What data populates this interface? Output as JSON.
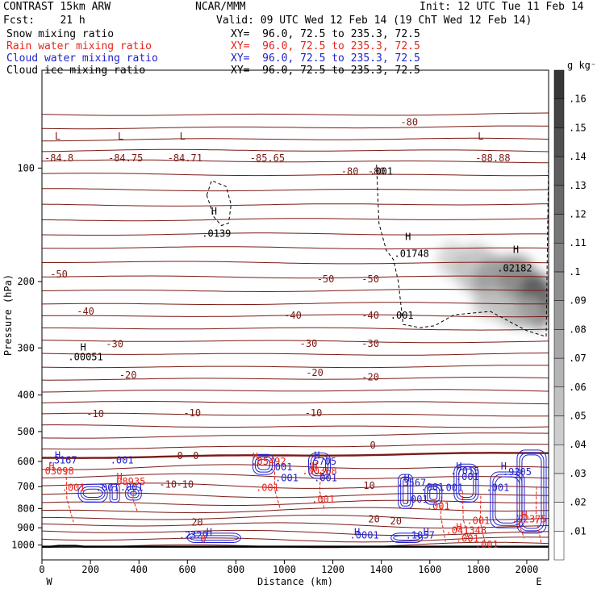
{
  "header": {
    "model": "CONTRAST 15km ARW",
    "forecast": "Fcst:    21 h",
    "center": "NCAR/MMM",
    "init": "Init: 12 UTC Tue 11 Feb 14",
    "valid": "Valid: 09 UTC Wed 12 Feb 14 (19 ChT Wed 12 Feb 14)",
    "fields": [
      {
        "name": "Snow mixing ratio",
        "xy": "XY=  96.0, 72.5 to 235.3, 72.5",
        "color": "#000000"
      },
      {
        "name": "Rain water mixing ratio",
        "xy": "XY=  96.0, 72.5 to 235.3, 72.5",
        "color": "#e8241c"
      },
      {
        "name": "Cloud water mixing ratio",
        "xy": "XY=  96.0, 72.5 to 235.3, 72.5",
        "color": "#2222cc"
      },
      {
        "name": "Cloud ice mixing ratio",
        "xy": "XY=  96.0, 72.5 to 235.3, 72.5",
        "color": "#000000"
      }
    ]
  },
  "chart_data": {
    "type": "heatmap",
    "xlabel": "Distance (km)",
    "ylabel": "Pressure (hPa)",
    "xlim": [
      0,
      2090
    ],
    "ylim": [
      1095,
      55
    ],
    "y_scale": "log",
    "x_ticks": [
      0,
      200,
      400,
      600,
      800,
      1000,
      1200,
      1400,
      1600,
      1800,
      2000
    ],
    "y_ticks": [
      100,
      200,
      300,
      400,
      500,
      600,
      700,
      800,
      900,
      1000
    ],
    "x_end_labels": {
      "left": "W",
      "right": "E"
    },
    "colorbar": {
      "unit": "g kg⁻¹",
      "ticks": [
        ".01",
        ".02",
        ".03",
        ".04",
        ".05",
        ".06",
        ".07",
        ".08",
        ".09",
        ".1",
        ".11",
        ".12",
        ".13",
        ".14",
        ".15",
        ".16"
      ],
      "max": 0.17
    },
    "temperature_isotherms_c": [
      -80,
      -50,
      -40,
      -30,
      -20,
      -10,
      0,
      10,
      20
    ],
    "temperature_color": "#7a1a14",
    "labels": [
      {
        "text": "L",
        "x": 65,
        "p": 84,
        "color": "#7a1a14"
      },
      {
        "text": "-84.8",
        "x": 70,
        "p": 96,
        "color": "#7a1a14"
      },
      {
        "text": "L",
        "x": 325,
        "p": 84,
        "color": "#7a1a14"
      },
      {
        "text": "-84.75",
        "x": 345,
        "p": 96,
        "color": "#7a1a14"
      },
      {
        "text": "L",
        "x": 580,
        "p": 84,
        "color": "#7a1a14"
      },
      {
        "text": "-84.71",
        "x": 590,
        "p": 96,
        "color": "#7a1a14"
      },
      {
        "text": "-85.65",
        "x": 930,
        "p": 96,
        "color": "#7a1a14"
      },
      {
        "text": "L",
        "x": 1810,
        "p": 84,
        "color": "#7a1a14"
      },
      {
        "text": "-88.88",
        "x": 1860,
        "p": 96,
        "color": "#7a1a14"
      },
      {
        "text": "-80",
        "x": 1515,
        "p": 77,
        "color": "#7a1a14"
      },
      {
        "text": "-80",
        "x": 1270,
        "p": 104,
        "color": "#7a1a14"
      },
      {
        "text": "-80",
        "x": 1380,
        "p": 104,
        "color": "#7a1a14"
      },
      {
        "text": ".001",
        "x": 1400,
        "p": 104,
        "color": "#000000"
      },
      {
        "text": "H",
        "x": 710,
        "p": 133,
        "color": "#000000"
      },
      {
        "text": ".0139",
        "x": 720,
        "p": 152,
        "color": "#000000"
      },
      {
        "text": "H",
        "x": 1510,
        "p": 155,
        "color": "#000000"
      },
      {
        "text": ".01748",
        "x": 1525,
        "p": 172,
        "color": "#000000"
      },
      {
        "text": "H",
        "x": 1955,
        "p": 168,
        "color": "#000000"
      },
      {
        "text": ".02182",
        "x": 1950,
        "p": 188,
        "color": "#000000"
      },
      {
        "text": "-50",
        "x": 70,
        "p": 195,
        "color": "#7a1a14"
      },
      {
        "text": "-50",
        "x": 1170,
        "p": 201,
        "color": "#7a1a14"
      },
      {
        "text": "-50",
        "x": 1355,
        "p": 201,
        "color": "#7a1a14"
      },
      {
        "text": "-40",
        "x": 180,
        "p": 245,
        "color": "#7a1a14"
      },
      {
        "text": "-40",
        "x": 1035,
        "p": 251,
        "color": "#7a1a14"
      },
      {
        "text": "-40",
        "x": 1355,
        "p": 251,
        "color": "#7a1a14"
      },
      {
        "text": ".001",
        "x": 1485,
        "p": 251,
        "color": "#000000"
      },
      {
        "text": "-30",
        "x": 300,
        "p": 299,
        "color": "#7a1a14"
      },
      {
        "text": "-30",
        "x": 1100,
        "p": 298,
        "color": "#7a1a14"
      },
      {
        "text": "-30",
        "x": 1355,
        "p": 298,
        "color": "#7a1a14"
      },
      {
        "text": "H",
        "x": 170,
        "p": 305,
        "color": "#000000"
      },
      {
        "text": ".00051",
        "x": 180,
        "p": 323,
        "color": "#000000"
      },
      {
        "text": "-20",
        "x": 355,
        "p": 361,
        "color": "#7a1a14"
      },
      {
        "text": "-20",
        "x": 1125,
        "p": 356,
        "color": "#7a1a14"
      },
      {
        "text": "-20",
        "x": 1355,
        "p": 366,
        "color": "#7a1a14"
      },
      {
        "text": "-10",
        "x": 220,
        "p": 458,
        "color": "#7a1a14"
      },
      {
        "text": "-10",
        "x": 620,
        "p": 455,
        "color": "#7a1a14"
      },
      {
        "text": "-10",
        "x": 1120,
        "p": 455,
        "color": "#7a1a14"
      },
      {
        "text": "0",
        "x": 1365,
        "p": 555,
        "color": "#7a1a14"
      },
      {
        "text": "0",
        "x": 570,
        "p": 591,
        "color": "#7a1a14"
      },
      {
        "text": "0",
        "x": 635,
        "p": 591,
        "color": "#7a1a14"
      },
      {
        "text": "H",
        "x": 65,
        "p": 590,
        "color": "#2222cc"
      },
      {
        "text": ".3167",
        "x": 85,
        "p": 608,
        "color": "#2222cc"
      },
      {
        "text": ".001",
        "x": 330,
        "p": 608,
        "color": "#2222cc"
      },
      {
        "text": "H",
        "x": 40,
        "p": 631,
        "color": "#e8241c"
      },
      {
        "text": ".03098",
        "x": 60,
        "p": 650,
        "color": "#e8241c"
      },
      {
        "text": "H",
        "x": 880,
        "p": 595,
        "color": "#e8241c"
      },
      {
        "text": ".05492",
        "x": 935,
        "p": 612,
        "color": "#e8241c"
      },
      {
        "text": "H",
        "x": 1135,
        "p": 590,
        "color": "#2222cc"
      },
      {
        "text": ".5705",
        "x": 1155,
        "p": 612,
        "color": "#2222cc"
      },
      {
        "text": "H",
        "x": 1125,
        "p": 631,
        "color": "#e8241c"
      },
      {
        "text": ".00368",
        "x": 1145,
        "p": 650,
        "color": "#e8241c"
      },
      {
        "text": ".001",
        "x": 985,
        "p": 633,
        "color": "#2222cc"
      },
      {
        "text": ".001",
        "x": 1010,
        "p": 677,
        "color": "#2222cc"
      },
      {
        "text": ".001",
        "x": 1170,
        "p": 677,
        "color": "#2222cc"
      },
      {
        "text": "H",
        "x": 1720,
        "p": 630,
        "color": "#2222cc"
      },
      {
        "text": ".7015",
        "x": 1745,
        "p": 650,
        "color": "#2222cc"
      },
      {
        "text": "H",
        "x": 1905,
        "p": 630,
        "color": "#2222cc"
      },
      {
        "text": ".9205",
        "x": 1960,
        "p": 652,
        "color": "#2222cc"
      },
      {
        "text": ".001",
        "x": 1755,
        "p": 672,
        "color": "#2222cc"
      },
      {
        "text": "H",
        "x": 320,
        "p": 672,
        "color": "#e8241c"
      },
      {
        "text": ".08935",
        "x": 355,
        "p": 693,
        "color": "#e8241c"
      },
      {
        "text": ".001",
        "x": 370,
        "p": 716,
        "color": "#2222cc"
      },
      {
        "text": "-10",
        "x": 520,
        "p": 705,
        "color": "#7a1a14"
      },
      {
        "text": "-10",
        "x": 590,
        "p": 705,
        "color": "#7a1a14"
      },
      {
        "text": "10",
        "x": 1350,
        "p": 710,
        "color": "#7a1a14"
      },
      {
        "text": "H",
        "x": 1505,
        "p": 677,
        "color": "#2222cc"
      },
      {
        "text": ".3567",
        "x": 1525,
        "p": 697,
        "color": "#2222cc"
      },
      {
        "text": ".001",
        "x": 130,
        "p": 718,
        "color": "#e8241c"
      },
      {
        "text": ".001",
        "x": 270,
        "p": 718,
        "color": "#2222cc"
      },
      {
        "text": ".001",
        "x": 930,
        "p": 718,
        "color": "#e8241c"
      },
      {
        "text": ".001",
        "x": 1610,
        "p": 717,
        "color": "#2222cc"
      },
      {
        "text": ".001",
        "x": 1690,
        "p": 718,
        "color": "#2222cc"
      },
      {
        "text": ".001",
        "x": 1880,
        "p": 718,
        "color": "#2222cc"
      },
      {
        "text": ".001",
        "x": 1545,
        "p": 772,
        "color": "#2222cc"
      },
      {
        "text": ".001",
        "x": 1160,
        "p": 772,
        "color": "#e8241c"
      },
      {
        "text": ".001",
        "x": 1635,
        "p": 805,
        "color": "#e8241c"
      },
      {
        "text": "H",
        "x": 1990,
        "p": 850,
        "color": "#e8241c"
      },
      {
        "text": ".22375",
        "x": 2010,
        "p": 870,
        "color": "#e8241c"
      },
      {
        "text": "20",
        "x": 1370,
        "p": 871,
        "color": "#7a1a14"
      },
      {
        "text": "20",
        "x": 1460,
        "p": 881,
        "color": "#7a1a14"
      },
      {
        "text": "20",
        "x": 640,
        "p": 888,
        "color": "#7a1a14"
      },
      {
        "text": ".001",
        "x": 1800,
        "p": 880,
        "color": "#e8241c"
      },
      {
        "text": "H",
        "x": 1720,
        "p": 915,
        "color": "#e8241c"
      },
      {
        "text": ".041348",
        "x": 1750,
        "p": 932,
        "color": "#e8241c"
      },
      {
        "text": "H",
        "x": 690,
        "p": 943,
        "color": "#2222cc"
      },
      {
        "text": ".2329",
        "x": 625,
        "p": 960,
        "color": "#2222cc"
      },
      {
        "text": "H",
        "x": 1300,
        "p": 943,
        "color": "#2222cc"
      },
      {
        "text": ".0001",
        "x": 1330,
        "p": 960,
        "color": "#2222cc"
      },
      {
        "text": "H",
        "x": 1585,
        "p": 943,
        "color": "#2222cc"
      },
      {
        "text": ".1057",
        "x": 1560,
        "p": 960,
        "color": "#2222cc"
      },
      {
        "text": ".001",
        "x": 1755,
        "p": 980,
        "color": "#e8241c"
      },
      {
        "text": "0",
        "x": 665,
        "p": 985,
        "color": "#e8241c"
      },
      {
        "text": ".001",
        "x": 1835,
        "p": 1016,
        "color": "#e8241c"
      }
    ]
  }
}
